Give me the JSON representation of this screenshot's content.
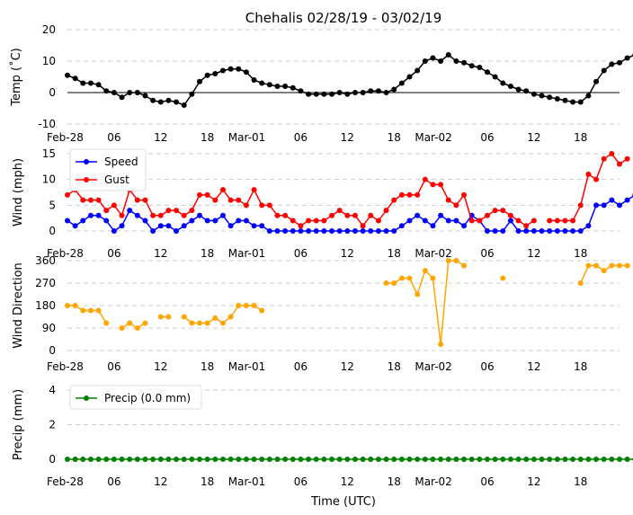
{
  "title": "Chehalis 02/28/19 - 03/02/19",
  "xlabel": "Time (UTC)",
  "x_ticks": [
    {
      "h": 0,
      "label": "Feb-28"
    },
    {
      "h": 6,
      "label": "06"
    },
    {
      "h": 12,
      "label": "12"
    },
    {
      "h": 18,
      "label": "18"
    },
    {
      "h": 24,
      "label": "Mar-01"
    },
    {
      "h": 30,
      "label": "06"
    },
    {
      "h": 36,
      "label": "12"
    },
    {
      "h": 42,
      "label": "18"
    },
    {
      "h": 48,
      "label": "Mar-02"
    },
    {
      "h": 54,
      "label": "06"
    },
    {
      "h": 60,
      "label": "12"
    },
    {
      "h": 66,
      "label": "18"
    }
  ],
  "colors": {
    "temp": "#000000",
    "speed": "#0000ff",
    "gust": "#ff0000",
    "direction": "#ffa500",
    "precip": "#008000",
    "grid": "#cccccc"
  },
  "chart_data": [
    {
      "type": "line",
      "ylabel": "Temp (˚C)",
      "ylim": [
        -10,
        20
      ],
      "yticks": [
        -10,
        0,
        10,
        20
      ],
      "zero_line": true,
      "series": [
        {
          "name": "Temp",
          "color_key": "temp",
          "x_start": 0,
          "x_step": 1,
          "values": [
            5.5,
            4.5,
            3,
            3,
            2.5,
            0.5,
            0,
            -1.5,
            0,
            0,
            -1,
            -2.5,
            -3,
            -2.5,
            -3,
            -4,
            -0.5,
            3.5,
            5.5,
            6,
            7,
            7.5,
            7.5,
            6.5,
            4,
            3,
            2.5,
            2,
            2,
            1.5,
            0.5,
            -0.5,
            -0.5,
            -0.5,
            -0.5,
            0,
            -0.5,
            0,
            0,
            0.5,
            0.5,
            0,
            1,
            3,
            5,
            7,
            10,
            11,
            10,
            12,
            10,
            9.5,
            8.5,
            8,
            6.5,
            5,
            3,
            2,
            1,
            0.5,
            -0.5,
            -1,
            -1.5,
            -2,
            -2.5,
            -3,
            -3,
            -1,
            3.5,
            7,
            9,
            9.5,
            11,
            12,
            11
          ]
        }
      ]
    },
    {
      "type": "line",
      "ylabel": "Wind (mph)",
      "ylim": [
        0,
        15
      ],
      "yticks": [
        0,
        5,
        10,
        15
      ],
      "legend": [
        "Speed",
        "Gust"
      ],
      "series": [
        {
          "name": "Speed",
          "color_key": "speed",
          "x_start": 0,
          "x_step": 1,
          "values": [
            2,
            1,
            2,
            3,
            3,
            2,
            0,
            1,
            4,
            3,
            2,
            0,
            1,
            1,
            0,
            1,
            2,
            3,
            2,
            2,
            3,
            1,
            2,
            2,
            1,
            1,
            0,
            0,
            0,
            0,
            0,
            0,
            0,
            0,
            0,
            0,
            0,
            0,
            0,
            0,
            0,
            0,
            0,
            1,
            2,
            3,
            2,
            1,
            3,
            2,
            2,
            1,
            3,
            2,
            0,
            0,
            0,
            2,
            0,
            0,
            0,
            0,
            0,
            0,
            0,
            0,
            0,
            1,
            5,
            5,
            6,
            5,
            6,
            7
          ]
        },
        {
          "name": "Gust",
          "color_key": "gust",
          "x_start": 0,
          "x_step": 1,
          "values": [
            7,
            8,
            6,
            6,
            6,
            4,
            5,
            3,
            8,
            6,
            6,
            3,
            3,
            4,
            4,
            3,
            4,
            7,
            7,
            6,
            8,
            6,
            6,
            5,
            8,
            5,
            5,
            3,
            3,
            2,
            1,
            2,
            2,
            2,
            3,
            4,
            3,
            3,
            1,
            3,
            2,
            4,
            6,
            7,
            7,
            7,
            10,
            9,
            9,
            6,
            5,
            7,
            2,
            2,
            3,
            4,
            4,
            3,
            2,
            1,
            2,
            null,
            2,
            2,
            2,
            2,
            5,
            11,
            10,
            14,
            15,
            13,
            14
          ]
        }
      ]
    },
    {
      "type": "line",
      "ylabel": "Wind Direction",
      "ylim": [
        0,
        360
      ],
      "yticks": [
        0,
        90,
        180,
        270,
        360
      ],
      "series": [
        {
          "name": "Direction",
          "color_key": "direction",
          "x_start": 0,
          "x_step": 1,
          "values": [
            180,
            180,
            160,
            160,
            160,
            110,
            null,
            90,
            110,
            90,
            110,
            null,
            135,
            135,
            null,
            135,
            110,
            110,
            110,
            130,
            110,
            135,
            180,
            180,
            180,
            160,
            null,
            null,
            null,
            null,
            null,
            null,
            null,
            null,
            null,
            null,
            null,
            null,
            null,
            null,
            null,
            null,
            null,
            null,
            null,
            null,
            null,
            null,
            null,
            null,
            null,
            null,
            null,
            null,
            null,
            null,
            null,
            null,
            null,
            null,
            null,
            null,
            null,
            null,
            null,
            null,
            null,
            null,
            null,
            null,
            null,
            null,
            null,
            null,
            null
          ]
        },
        {
          "name": "Direction (Mar-01 18 onward)",
          "color_key": "direction",
          "x_start": 41,
          "x_step": 1,
          "values": [
            270,
            270,
            290,
            290,
            225,
            320,
            290,
            25,
            360,
            360,
            340,
            null,
            null,
            null,
            null,
            290,
            null,
            null,
            null,
            null,
            null,
            null,
            null,
            null,
            null,
            270,
            340,
            340,
            320,
            340,
            340,
            340
          ]
        }
      ]
    },
    {
      "type": "line",
      "ylabel": "Precip (mm)",
      "ylim": [
        0,
        4
      ],
      "yticks": [
        0,
        2,
        4
      ],
      "legend": [
        "Precip (0.0 mm)"
      ],
      "series": [
        {
          "name": "Precip (0.0 mm)",
          "color_key": "precip",
          "x_start": 0,
          "x_step": 1,
          "values": [
            0,
            0,
            0,
            0,
            0,
            0,
            0,
            0,
            0,
            0,
            0,
            0,
            0,
            0,
            0,
            0,
            0,
            0,
            0,
            0,
            0,
            0,
            0,
            0,
            0,
            0,
            0,
            0,
            0,
            0,
            0,
            0,
            0,
            0,
            0,
            0,
            0,
            0,
            0,
            0,
            0,
            0,
            0,
            0,
            0,
            0,
            0,
            0,
            0,
            0,
            0,
            0,
            0,
            0,
            0,
            0,
            0,
            0,
            0,
            0,
            0,
            0,
            0,
            0,
            0,
            0,
            0,
            0,
            0,
            0,
            0,
            0,
            0,
            0,
            0
          ]
        }
      ]
    }
  ]
}
